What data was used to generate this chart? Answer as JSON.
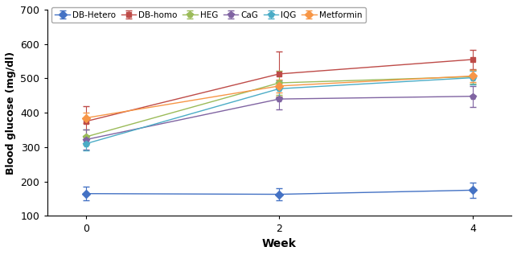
{
  "weeks": [
    0,
    2,
    4
  ],
  "series": [
    {
      "label": "DB-Hetero",
      "color": "#4472C4",
      "marker": "D",
      "markersize": 5,
      "values": [
        165,
        163,
        175
      ],
      "errors": [
        20,
        18,
        22
      ]
    },
    {
      "label": "DB-homo",
      "color": "#BE4B48",
      "marker": "s",
      "markersize": 5,
      "values": [
        375,
        513,
        555
      ],
      "errors": [
        45,
        65,
        28
      ]
    },
    {
      "label": "HEG",
      "color": "#9BBB59",
      "marker": "p",
      "markersize": 6,
      "values": [
        330,
        487,
        505
      ],
      "errors": [
        22,
        35,
        20
      ]
    },
    {
      "label": "CaG",
      "color": "#8064A2",
      "marker": "p",
      "markersize": 6,
      "values": [
        322,
        440,
        448
      ],
      "errors": [
        30,
        30,
        30
      ]
    },
    {
      "label": "IQG",
      "color": "#4BACC6",
      "marker": "p",
      "markersize": 6,
      "values": [
        310,
        470,
        502
      ],
      "errors": [
        20,
        25,
        20
      ]
    },
    {
      "label": "Metformin",
      "color": "#F79646",
      "marker": "D",
      "markersize": 5,
      "values": [
        385,
        478,
        507
      ],
      "errors": [
        15,
        18,
        18
      ]
    }
  ],
  "xlabel": "Week",
  "ylabel": "Blood glucose (mg/dl)",
  "ylim": [
    100,
    700
  ],
  "yticks": [
    100,
    200,
    300,
    400,
    500,
    600,
    700
  ],
  "xticks": [
    0,
    2,
    4
  ],
  "background_color": "#ffffff",
  "figsize": [
    6.43,
    3.17
  ],
  "dpi": 100
}
